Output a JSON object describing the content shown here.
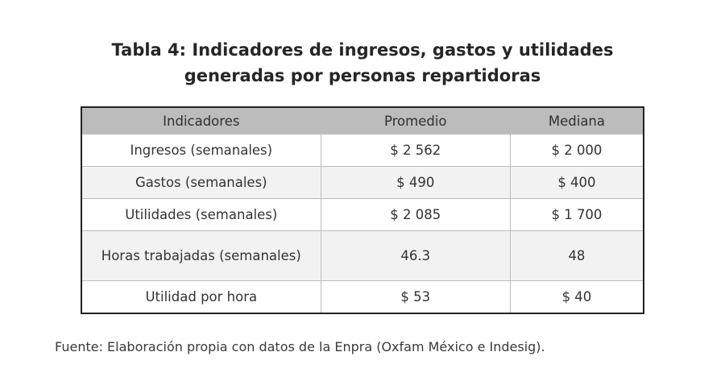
{
  "title": {
    "line1": "Tabla 4: Indicadores de ingresos, gastos y utilidades",
    "line2": "generadas por personas repartidoras"
  },
  "table": {
    "headers": [
      "Indicadores",
      "Promedio",
      "Mediana"
    ],
    "rows": [
      {
        "label": "Ingresos (semanales)",
        "promedio": "$ 2 562",
        "mediana": "$ 2 000"
      },
      {
        "label": "Gastos (semanales)",
        "promedio": "$ 490",
        "mediana": "$ 400"
      },
      {
        "label": "Utilidades (semanales)",
        "promedio": "$ 2 085",
        "mediana": "$ 1 700"
      },
      {
        "label": "Horas trabajadas (semanales)",
        "promedio": "46.3",
        "mediana": "48"
      },
      {
        "label": "Utilidad por hora",
        "promedio": "$ 53",
        "mediana": "$ 40"
      }
    ]
  },
  "source": "Fuente: Elaboración propia con datos de la Enpra (Oxfam México e Indesig).",
  "colors": {
    "header_bg": "#bcbcbc",
    "row_alt_bg": "#f2f2f2",
    "border": "#222222"
  }
}
